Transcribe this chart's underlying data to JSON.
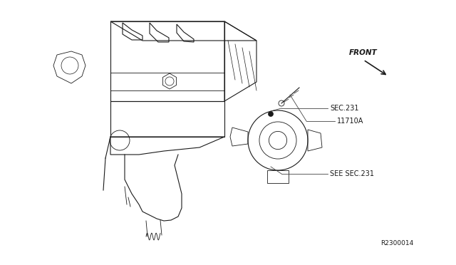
{
  "background_color": "#ffffff",
  "line_color": "#1a1a1a",
  "label_color": "#555555",
  "text_color": "#1a1a1a",
  "labels": {
    "sec231": "SEC.231",
    "see_sec231": "SEE SEC.231",
    "part_num": "11710A",
    "front": "FRONT",
    "ref_num": "R2300014"
  },
  "figsize": [
    6.4,
    3.72
  ],
  "dpi": 100
}
